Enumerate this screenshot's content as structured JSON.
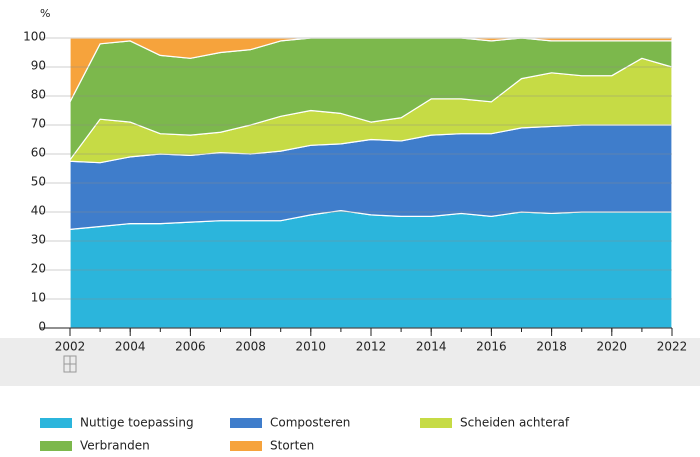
{
  "chart_data": {
    "type": "stacked_area",
    "y_label": "%",
    "x": [
      2002,
      2003,
      2004,
      2005,
      2006,
      2007,
      2008,
      2009,
      2010,
      2011,
      2012,
      2013,
      2014,
      2015,
      2016,
      2017,
      2018,
      2019,
      2020,
      2021,
      2022
    ],
    "xlim": [
      2002,
      2022
    ],
    "xticks": [
      2002,
      2004,
      2006,
      2008,
      2010,
      2012,
      2014,
      2016,
      2018,
      2020,
      2022
    ],
    "ylim": [
      0,
      100
    ],
    "yticks": [
      0,
      10,
      20,
      30,
      40,
      50,
      60,
      70,
      80,
      90,
      100
    ],
    "grid": true,
    "legend_position": "bottom",
    "series": [
      {
        "name": "Nuttige toepassing",
        "color": "#2bb5dc",
        "values": [
          34,
          35,
          36,
          36,
          36.5,
          37,
          37,
          37,
          39,
          40.5,
          39,
          38.5,
          38.5,
          39.5,
          38.5,
          40,
          39.5,
          40,
          40,
          40,
          40
        ]
      },
      {
        "name": "Composteren",
        "color": "#3f7dcb",
        "values": [
          23.5,
          22,
          23,
          24,
          23,
          23.5,
          23,
          24,
          24,
          23,
          26,
          26,
          28,
          27.5,
          28.5,
          29,
          30,
          30,
          30,
          30,
          30
        ]
      },
      {
        "name": "Scheiden achteraf",
        "color": "#c6db45",
        "values": [
          0.5,
          15,
          12,
          7,
          7,
          7,
          10,
          12,
          12,
          10.5,
          6,
          8,
          12.5,
          12,
          11,
          17,
          18.5,
          17,
          17,
          23,
          20
        ]
      },
      {
        "name": "Verbranden",
        "color": "#7cb84c",
        "values": [
          20,
          26,
          28,
          27,
          26.5,
          27.5,
          26,
          26,
          25,
          26,
          29,
          27.5,
          21,
          21,
          21,
          14,
          11,
          12,
          12,
          6,
          9
        ]
      },
      {
        "name": "Storten",
        "color": "#f6a33c",
        "values": [
          22,
          2,
          1,
          6,
          7,
          5,
          4,
          1,
          0,
          0,
          0,
          0,
          0,
          0,
          1,
          0,
          1,
          1,
          1,
          1,
          1
        ]
      }
    ]
  }
}
